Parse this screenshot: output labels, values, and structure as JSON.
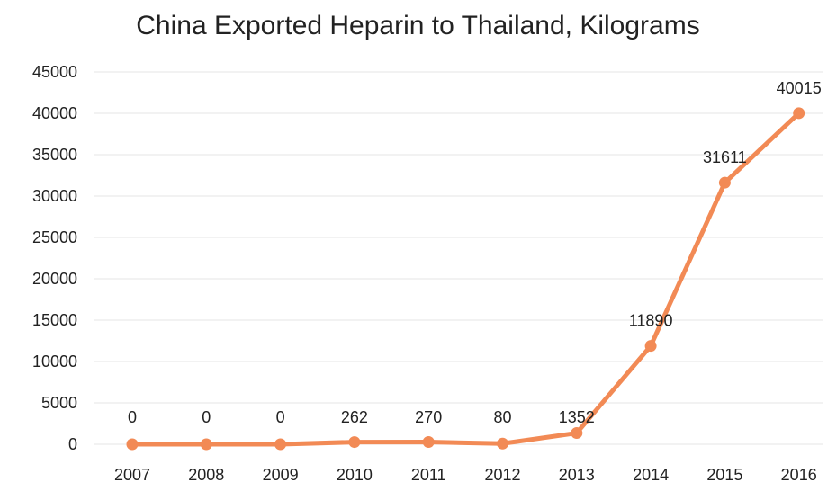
{
  "chart_data": {
    "type": "line",
    "title": "China Exported Heparin to Thailand, Kilograms",
    "xlabel": "",
    "ylabel": "",
    "categories": [
      "2007",
      "2008",
      "2009",
      "2010",
      "2011",
      "2012",
      "2013",
      "2014",
      "2015",
      "2016"
    ],
    "series": [
      {
        "values": [
          0,
          0,
          0,
          262,
          270,
          80,
          1352,
          11890,
          31611,
          40015
        ]
      }
    ],
    "data_labels": [
      "0",
      "0",
      "0",
      "262",
      "270",
      "80",
      "1352",
      "11890",
      "31611",
      "40015"
    ],
    "yticks": [
      "0",
      "5000",
      "10000",
      "15000",
      "20000",
      "25000",
      "30000",
      "35000",
      "40000",
      "45000"
    ],
    "ylim": [
      0,
      45000
    ],
    "grid": true,
    "legend": "none",
    "colors": {
      "line": "#F28A55",
      "grid": "#E4E4E4",
      "text": "#222222"
    }
  }
}
